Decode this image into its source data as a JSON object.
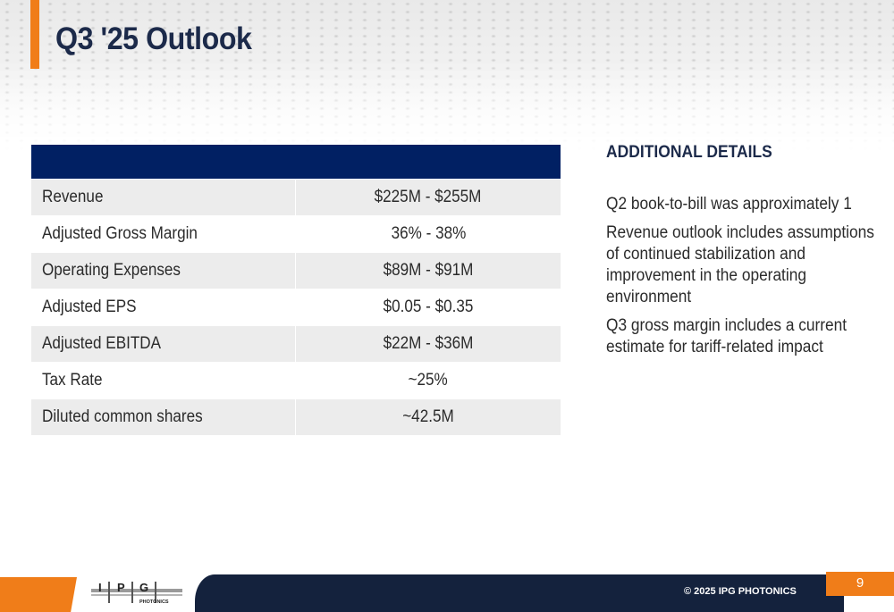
{
  "slide": {
    "title": "Q3 '25 Outlook",
    "page_number": "9",
    "copyright": "© 2025 IPG PHOTONICS"
  },
  "logo": {
    "letters": [
      "I",
      "P",
      "G"
    ],
    "subtext": "PHOTONICS"
  },
  "outlook_table": {
    "rows": [
      {
        "label": "Revenue",
        "value": "$225M - $255M"
      },
      {
        "label": "Adjusted Gross Margin",
        "value": "36% - 38%"
      },
      {
        "label": "Operating Expenses",
        "value": "$89M - $91M"
      },
      {
        "label": "Adjusted EPS",
        "value": "$0.05 - $0.35"
      },
      {
        "label": "Adjusted EBITDA",
        "value": "$22M - $36M"
      },
      {
        "label": "Tax Rate",
        "value": "~25%"
      },
      {
        "label": "Diluted common shares",
        "value": "~42.5M"
      }
    ]
  },
  "details": {
    "heading": "ADDITIONAL DETAILS",
    "items": [
      "Q2 book-to-bill was approximately 1",
      "Revenue outlook includes assumptions of continued stabilization and improvement in the operating environment",
      "Q3 gross margin includes a current estimate for tariff-related impact"
    ]
  },
  "colors": {
    "accent": "#f07d19",
    "table_header": "#012063",
    "footer": "#14223d",
    "row_shade": "#ececec"
  }
}
